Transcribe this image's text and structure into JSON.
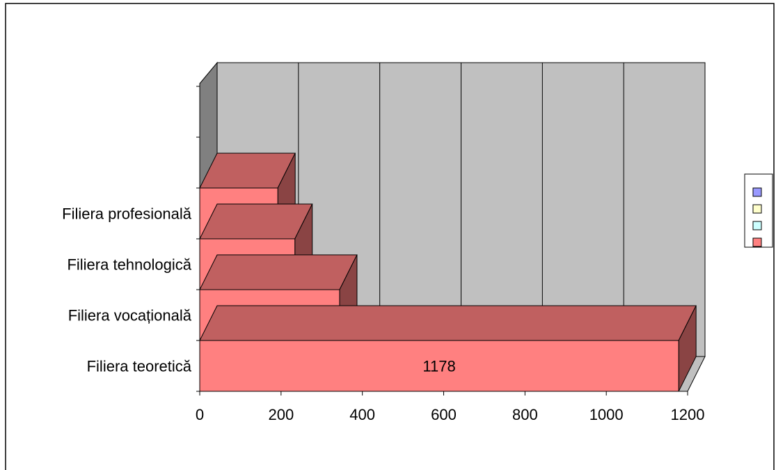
{
  "chart_data": {
    "type": "bar",
    "orientation": "horizontal",
    "style": "3d",
    "categories": [
      "Filiera teoretică",
      "Filiera vocațională",
      "Filiera tehnologică",
      "Filiera profesională"
    ],
    "values": [
      1178,
      344,
      234,
      192
    ],
    "title": "",
    "xlabel": "",
    "ylabel": "",
    "xlim": [
      0,
      1200
    ],
    "x_ticks": [
      0,
      200,
      400,
      600,
      800,
      1000,
      1200
    ],
    "grid": true,
    "legend": {
      "placement": "right",
      "swatch_colors": [
        "#9999ff",
        "#ffffcc",
        "#ccffff",
        "#ff8080"
      ]
    },
    "colors": {
      "bar_front": "#ff8080",
      "bar_top": "#c06060",
      "bar_side": "#8a4444",
      "back_wall": "#c0c0c0",
      "side_wall": "#808080",
      "floor": "#c0c0c0"
    }
  }
}
